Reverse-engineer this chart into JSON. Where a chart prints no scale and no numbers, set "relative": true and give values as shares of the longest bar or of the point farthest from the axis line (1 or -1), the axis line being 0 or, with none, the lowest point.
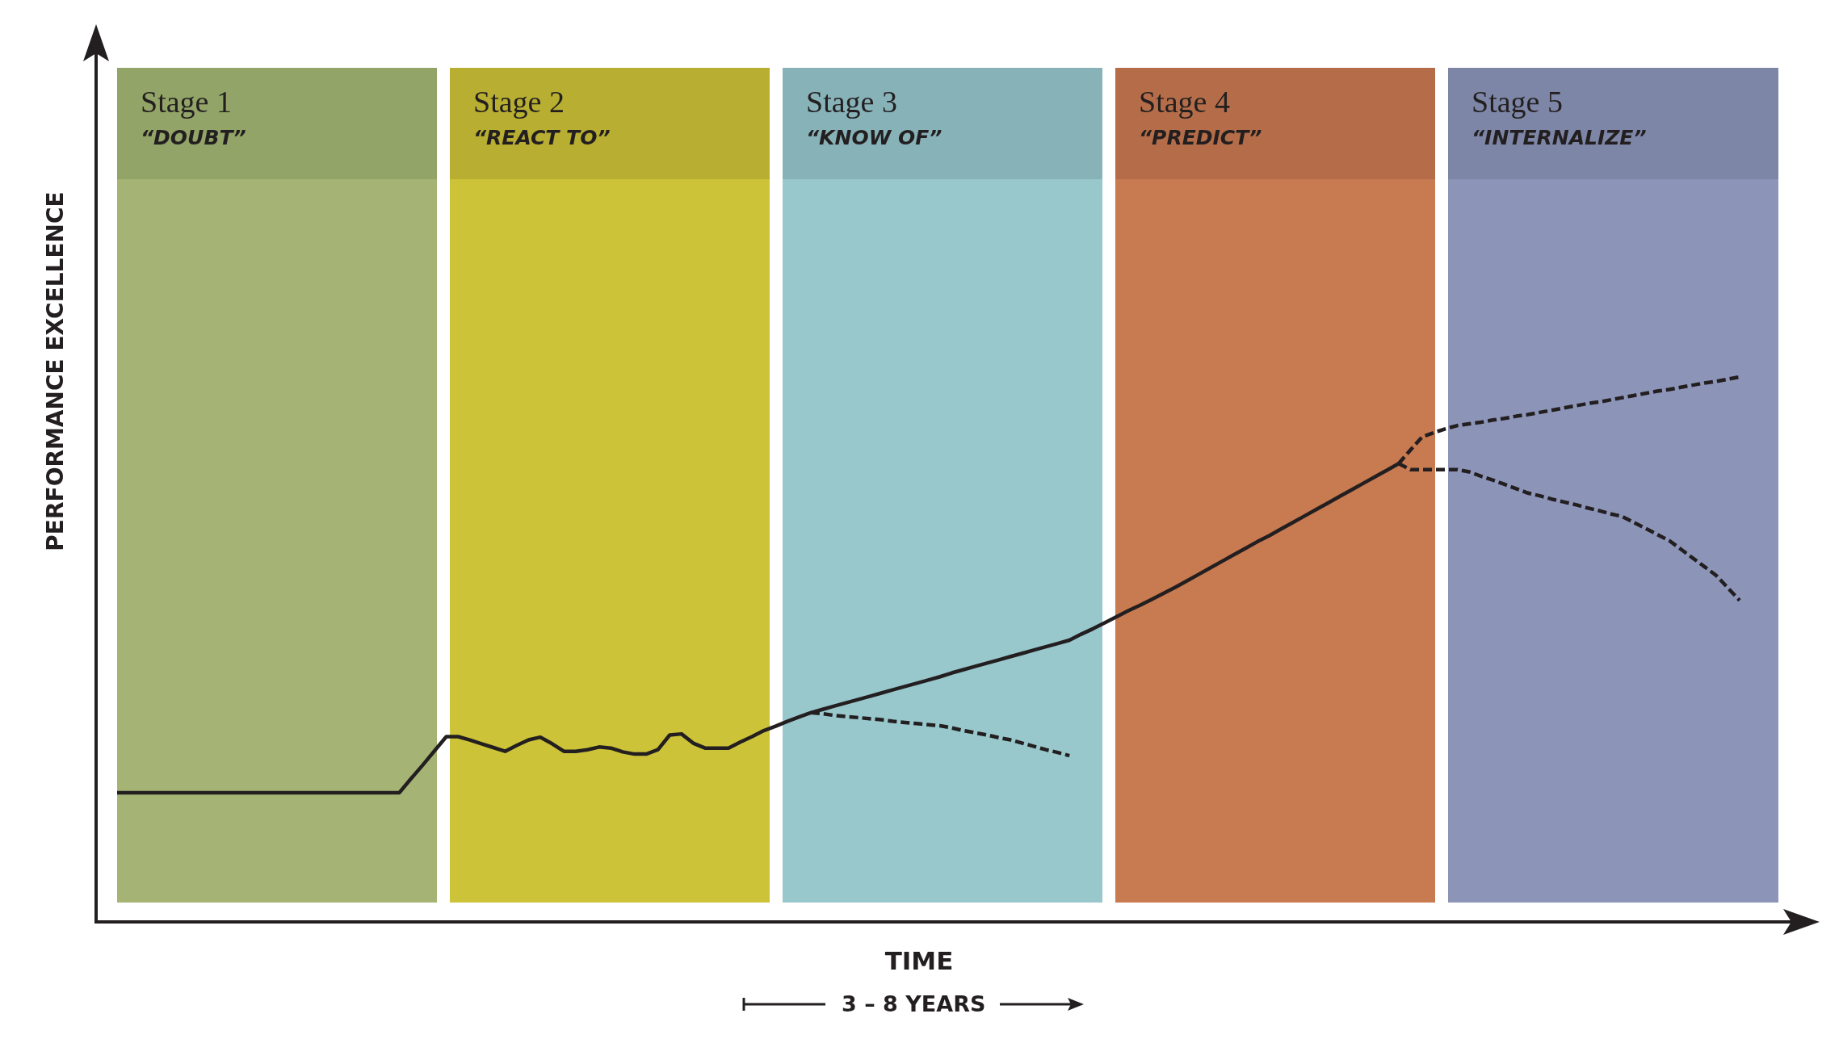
{
  "chart_data": {
    "type": "line",
    "relative": true,
    "xlabel": "TIME",
    "ylabel": "PERFORMANCE EXCELLENCE",
    "annotations": [
      "Stage 1\n“DOUBT”",
      "Stage 2\n“REACT TO”",
      "Stage 3\n“KNOW OF”",
      "Stage 4\n“PREDICT”",
      "Stage 5\n“INTERNALIZE”",
      "3 – 8 YEARS"
    ],
    "tick_labels": false,
    "legend": false,
    "marker": "none",
    "categories": [
      null,
      null,
      null,
      null,
      null,
      null,
      null,
      null,
      null,
      null,
      null,
      null,
      null,
      null,
      null,
      null,
      null,
      null,
      null,
      null,
      null,
      null,
      null,
      null,
      null,
      null,
      null,
      null,
      null,
      null,
      null,
      null,
      null,
      null,
      null,
      null,
      null,
      null,
      null,
      null,
      null,
      null,
      null,
      null,
      null,
      null,
      null,
      null,
      null,
      null,
      null,
      null,
      null,
      null,
      null,
      null,
      null,
      null,
      null,
      null,
      null,
      null,
      null,
      null,
      null,
      null,
      null,
      null,
      null,
      null,
      null,
      null,
      null,
      null,
      null,
      null,
      null,
      null,
      null,
      null,
      null,
      null,
      null,
      null,
      null,
      null,
      null,
      null,
      null,
      null,
      null,
      null,
      null,
      null,
      null,
      null,
      null,
      null,
      null,
      null,
      null,
      null,
      null,
      null,
      null,
      null,
      null,
      null,
      null,
      null,
      null,
      null,
      null,
      null,
      null,
      null,
      null,
      null,
      null,
      null,
      null,
      null,
      null,
      null,
      null,
      null,
      null,
      null,
      null,
      null,
      null,
      null,
      null,
      null,
      null,
      null,
      null,
      null,
      null
    ],
    "series": [
      {
        "color": "#231f20",
        "line_style": "solid",
        "values": [
          0.237,
          0.237,
          0.237,
          0.237,
          0.237,
          0.237,
          0.237,
          0.237,
          0.237,
          0.237,
          0.237,
          0.237,
          0.237,
          0.237,
          0.237,
          0.237,
          0.237,
          0.237,
          0.237,
          0.237,
          0.237,
          0.237,
          0.237,
          0.237,
          0.237,
          0.263,
          0.288,
          0.314,
          0.34,
          0.34,
          0.334,
          0.327,
          0.32,
          0.313,
          0.324,
          0.334,
          0.339,
          0.327,
          0.313,
          0.313,
          0.316,
          0.321,
          0.319,
          0.312,
          0.308,
          0.308,
          0.316,
          0.343,
          0.345,
          0.328,
          0.319,
          0.319,
          0.319,
          0.33,
          0.34,
          0.351,
          0.359,
          0.368,
          0.376,
          0.384,
          0.39,
          0.396,
          0.402,
          0.408,
          0.414,
          0.42,
          0.426,
          0.432,
          0.438,
          0.444,
          0.45,
          0.457,
          0.463,
          0.469,
          0.475,
          0.481,
          0.487,
          0.493,
          0.499,
          0.505,
          0.511,
          0.517,
          0.528,
          0.538,
          0.549,
          0.56,
          0.571,
          0.581,
          0.592,
          0.603,
          0.614,
          0.626,
          0.638,
          0.65,
          0.662,
          0.674,
          0.686,
          0.698,
          0.709,
          0.721,
          0.733,
          0.745,
          0.757,
          0.769,
          0.781,
          0.793,
          0.805,
          0.817,
          0.829,
          0.841,
          null,
          null,
          null,
          null,
          null,
          null,
          null,
          null,
          null,
          null,
          null,
          null,
          null,
          null,
          null,
          null,
          null,
          null,
          null,
          null,
          null,
          null,
          null,
          null,
          null,
          null,
          null,
          null,
          null
        ]
      },
      {
        "color": "#231f20",
        "line_style": "dashed",
        "values": [
          null,
          null,
          null,
          null,
          null,
          null,
          null,
          null,
          null,
          null,
          null,
          null,
          null,
          null,
          null,
          null,
          null,
          null,
          null,
          null,
          null,
          null,
          null,
          null,
          null,
          null,
          null,
          null,
          null,
          null,
          null,
          null,
          null,
          null,
          null,
          null,
          null,
          null,
          null,
          null,
          null,
          null,
          null,
          null,
          null,
          null,
          null,
          null,
          null,
          null,
          null,
          null,
          null,
          null,
          null,
          null,
          null,
          null,
          null,
          0.384,
          0.382,
          0.379,
          0.377,
          0.375,
          0.373,
          0.371,
          0.368,
          0.366,
          0.364,
          0.362,
          0.36,
          0.356,
          0.351,
          0.347,
          0.343,
          0.338,
          0.334,
          0.328,
          0.322,
          0.316,
          0.311,
          0.305,
          null,
          null,
          null,
          null,
          null,
          null,
          null,
          null,
          null,
          null,
          null,
          null,
          null,
          null,
          null,
          null,
          null,
          null,
          null,
          null,
          null,
          null,
          null,
          null,
          null,
          null,
          null,
          null,
          null,
          null,
          null,
          null,
          null,
          null,
          null,
          null,
          null,
          null,
          null,
          null,
          null,
          null,
          null,
          null,
          null,
          null,
          null,
          null,
          null,
          null,
          null,
          null,
          null,
          null,
          null,
          null,
          null
        ]
      },
      {
        "color": "#231f20",
        "line_style": "dashed",
        "values": [
          null,
          null,
          null,
          null,
          null,
          null,
          null,
          null,
          null,
          null,
          null,
          null,
          null,
          null,
          null,
          null,
          null,
          null,
          null,
          null,
          null,
          null,
          null,
          null,
          null,
          null,
          null,
          null,
          null,
          null,
          null,
          null,
          null,
          null,
          null,
          null,
          null,
          null,
          null,
          null,
          null,
          null,
          null,
          null,
          null,
          null,
          null,
          null,
          null,
          null,
          null,
          null,
          null,
          null,
          null,
          null,
          null,
          null,
          null,
          null,
          null,
          null,
          null,
          null,
          null,
          null,
          null,
          null,
          null,
          null,
          null,
          null,
          null,
          null,
          null,
          null,
          null,
          null,
          null,
          null,
          null,
          null,
          null,
          null,
          null,
          null,
          null,
          null,
          null,
          null,
          null,
          null,
          null,
          null,
          null,
          null,
          null,
          null,
          null,
          null,
          null,
          null,
          null,
          null,
          null,
          null,
          null,
          null,
          null,
          0.841,
          0.866,
          0.89,
          0.898,
          0.905,
          0.911,
          0.914,
          0.917,
          0.921,
          0.924,
          0.928,
          0.931,
          0.935,
          0.939,
          0.943,
          0.947,
          0.951,
          0.954,
          0.958,
          0.962,
          0.966,
          0.97,
          0.974,
          0.977,
          0.981,
          0.985,
          0.989,
          0.992,
          0.996,
          1
        ]
      },
      {
        "color": "#231f20",
        "line_style": "dashed",
        "values": [
          null,
          null,
          null,
          null,
          null,
          null,
          null,
          null,
          null,
          null,
          null,
          null,
          null,
          null,
          null,
          null,
          null,
          null,
          null,
          null,
          null,
          null,
          null,
          null,
          null,
          null,
          null,
          null,
          null,
          null,
          null,
          null,
          null,
          null,
          null,
          null,
          null,
          null,
          null,
          null,
          null,
          null,
          null,
          null,
          null,
          null,
          null,
          null,
          null,
          null,
          null,
          null,
          null,
          null,
          null,
          null,
          null,
          null,
          null,
          null,
          null,
          null,
          null,
          null,
          null,
          null,
          null,
          null,
          null,
          null,
          null,
          null,
          null,
          null,
          null,
          null,
          null,
          null,
          null,
          null,
          null,
          null,
          null,
          null,
          null,
          null,
          null,
          null,
          null,
          null,
          null,
          null,
          null,
          null,
          null,
          null,
          null,
          null,
          null,
          null,
          null,
          null,
          null,
          null,
          null,
          null,
          null,
          null,
          null,
          0.841,
          0.83,
          0.83,
          0.83,
          0.83,
          0.83,
          0.826,
          0.818,
          0.811,
          0.803,
          0.795,
          0.787,
          0.782,
          0.776,
          0.771,
          0.766,
          0.76,
          0.755,
          0.749,
          0.744,
          0.733,
          0.722,
          0.711,
          0.7,
          0.684,
          0.668,
          0.652,
          0.636,
          0.613,
          0.59
        ]
      }
    ]
  }
}
